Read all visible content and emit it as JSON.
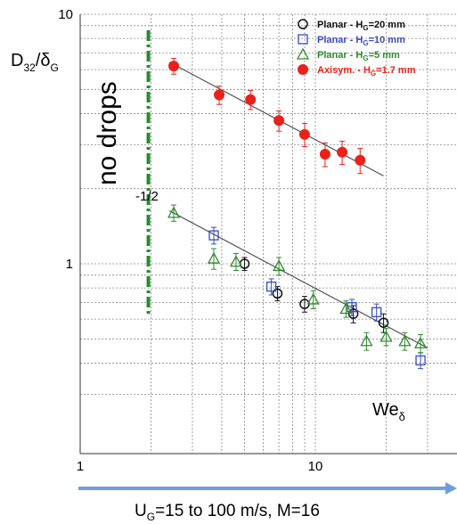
{
  "chart_data": {
    "type": "scatter",
    "xscale": "log",
    "yscale": "log",
    "xlim": [
      1,
      30
    ],
    "ylim": [
      0.3,
      10
    ],
    "grid": true,
    "legend_position": "top-right",
    "ylabel": {
      "main": "D",
      "sub1": "32",
      "slash": "/δ",
      "sub2": "G"
    },
    "xlabel_in_plot": {
      "main": "We",
      "sub": "δ"
    },
    "bottom_label": "U_G=15 to 100 m/s, M=16",
    "x_ticks": [
      {
        "value": 1,
        "label": "1"
      },
      {
        "value": 10,
        "label": "10"
      }
    ],
    "y_ticks": [
      {
        "value": 1,
        "label": "1"
      },
      {
        "value": 10,
        "label": "10"
      }
    ],
    "annotations": {
      "no_drops": "no drops",
      "slope": "-1/2",
      "no_drops_x": 1.95
    },
    "series": [
      {
        "name": "Planar - H_G=20 mm",
        "legend": {
          "pre": "Planar - H",
          "sub": "G",
          "post": "=20 mm"
        },
        "marker": "circle-open",
        "color": "#111111",
        "text_color": "#111111",
        "points": [
          {
            "x": 5.0,
            "y": 1.0,
            "err": 0.06
          },
          {
            "x": 6.9,
            "y": 0.76,
            "err": 0.05
          },
          {
            "x": 9.0,
            "y": 0.69,
            "err": 0.05
          },
          {
            "x": 14.5,
            "y": 0.63,
            "err": 0.05
          },
          {
            "x": 19.5,
            "y": 0.58,
            "err": 0.05
          }
        ]
      },
      {
        "name": "Planar - H_G=10 mm",
        "legend": {
          "pre": "Planar - H",
          "sub": "G",
          "post": "=10 mm"
        },
        "marker": "square-open",
        "color": "#3b4cc0",
        "text_color": "#3b4cc0",
        "points": [
          {
            "x": 3.7,
            "y": 1.3,
            "err": 0.1
          },
          {
            "x": 6.5,
            "y": 0.81,
            "err": 0.06
          },
          {
            "x": 14.3,
            "y": 0.67,
            "err": 0.05
          },
          {
            "x": 18.2,
            "y": 0.64,
            "err": 0.05
          },
          {
            "x": 28.0,
            "y": 0.41,
            "err": 0.03
          }
        ]
      },
      {
        "name": "Planar - H_G=5 mm",
        "legend": {
          "pre": "Planar - H",
          "sub": "G",
          "post": "=5 mm"
        },
        "marker": "triangle-open",
        "color": "#2e8b2e",
        "text_color": "#2e8b2e",
        "points": [
          {
            "x": 2.5,
            "y": 1.6,
            "err": 0.12
          },
          {
            "x": 3.7,
            "y": 1.05,
            "err": 0.1
          },
          {
            "x": 4.6,
            "y": 1.02,
            "err": 0.08
          },
          {
            "x": 7.0,
            "y": 0.98,
            "err": 0.08
          },
          {
            "x": 9.8,
            "y": 0.72,
            "err": 0.06
          },
          {
            "x": 13.5,
            "y": 0.66,
            "err": 0.05
          },
          {
            "x": 16.5,
            "y": 0.49,
            "err": 0.04
          },
          {
            "x": 20.0,
            "y": 0.51,
            "err": 0.04
          },
          {
            "x": 24.0,
            "y": 0.49,
            "err": 0.04
          },
          {
            "x": 28.0,
            "y": 0.48,
            "err": 0.04
          }
        ]
      },
      {
        "name": "Axisym. - H_G=1.7 mm",
        "legend": {
          "pre": "Axisym. - H",
          "sub": "G",
          "post": "=1.7 mm"
        },
        "marker": "circle-filled",
        "color": "#e8221b",
        "text_color": "#e8221b",
        "points": [
          {
            "x": 2.5,
            "y": 6.2,
            "err": 0.45
          },
          {
            "x": 3.9,
            "y": 4.75,
            "err": 0.4
          },
          {
            "x": 5.3,
            "y": 4.55,
            "err": 0.4
          },
          {
            "x": 7.0,
            "y": 3.75,
            "err": 0.35
          },
          {
            "x": 9.0,
            "y": 3.3,
            "err": 0.35
          },
          {
            "x": 11.0,
            "y": 2.75,
            "err": 0.3
          },
          {
            "x": 13.0,
            "y": 2.8,
            "err": 0.3
          },
          {
            "x": 15.5,
            "y": 2.6,
            "err": 0.3
          }
        ]
      }
    ],
    "fit_lines": [
      {
        "name": "fit-upper",
        "x": [
          2.4,
          19.5
        ],
        "y": [
          6.42,
          2.25
        ],
        "color": "#555555"
      },
      {
        "name": "fit-lower",
        "x": [
          2.4,
          30.0
        ],
        "y": [
          1.63,
          0.46
        ],
        "color": "#555555"
      }
    ]
  }
}
